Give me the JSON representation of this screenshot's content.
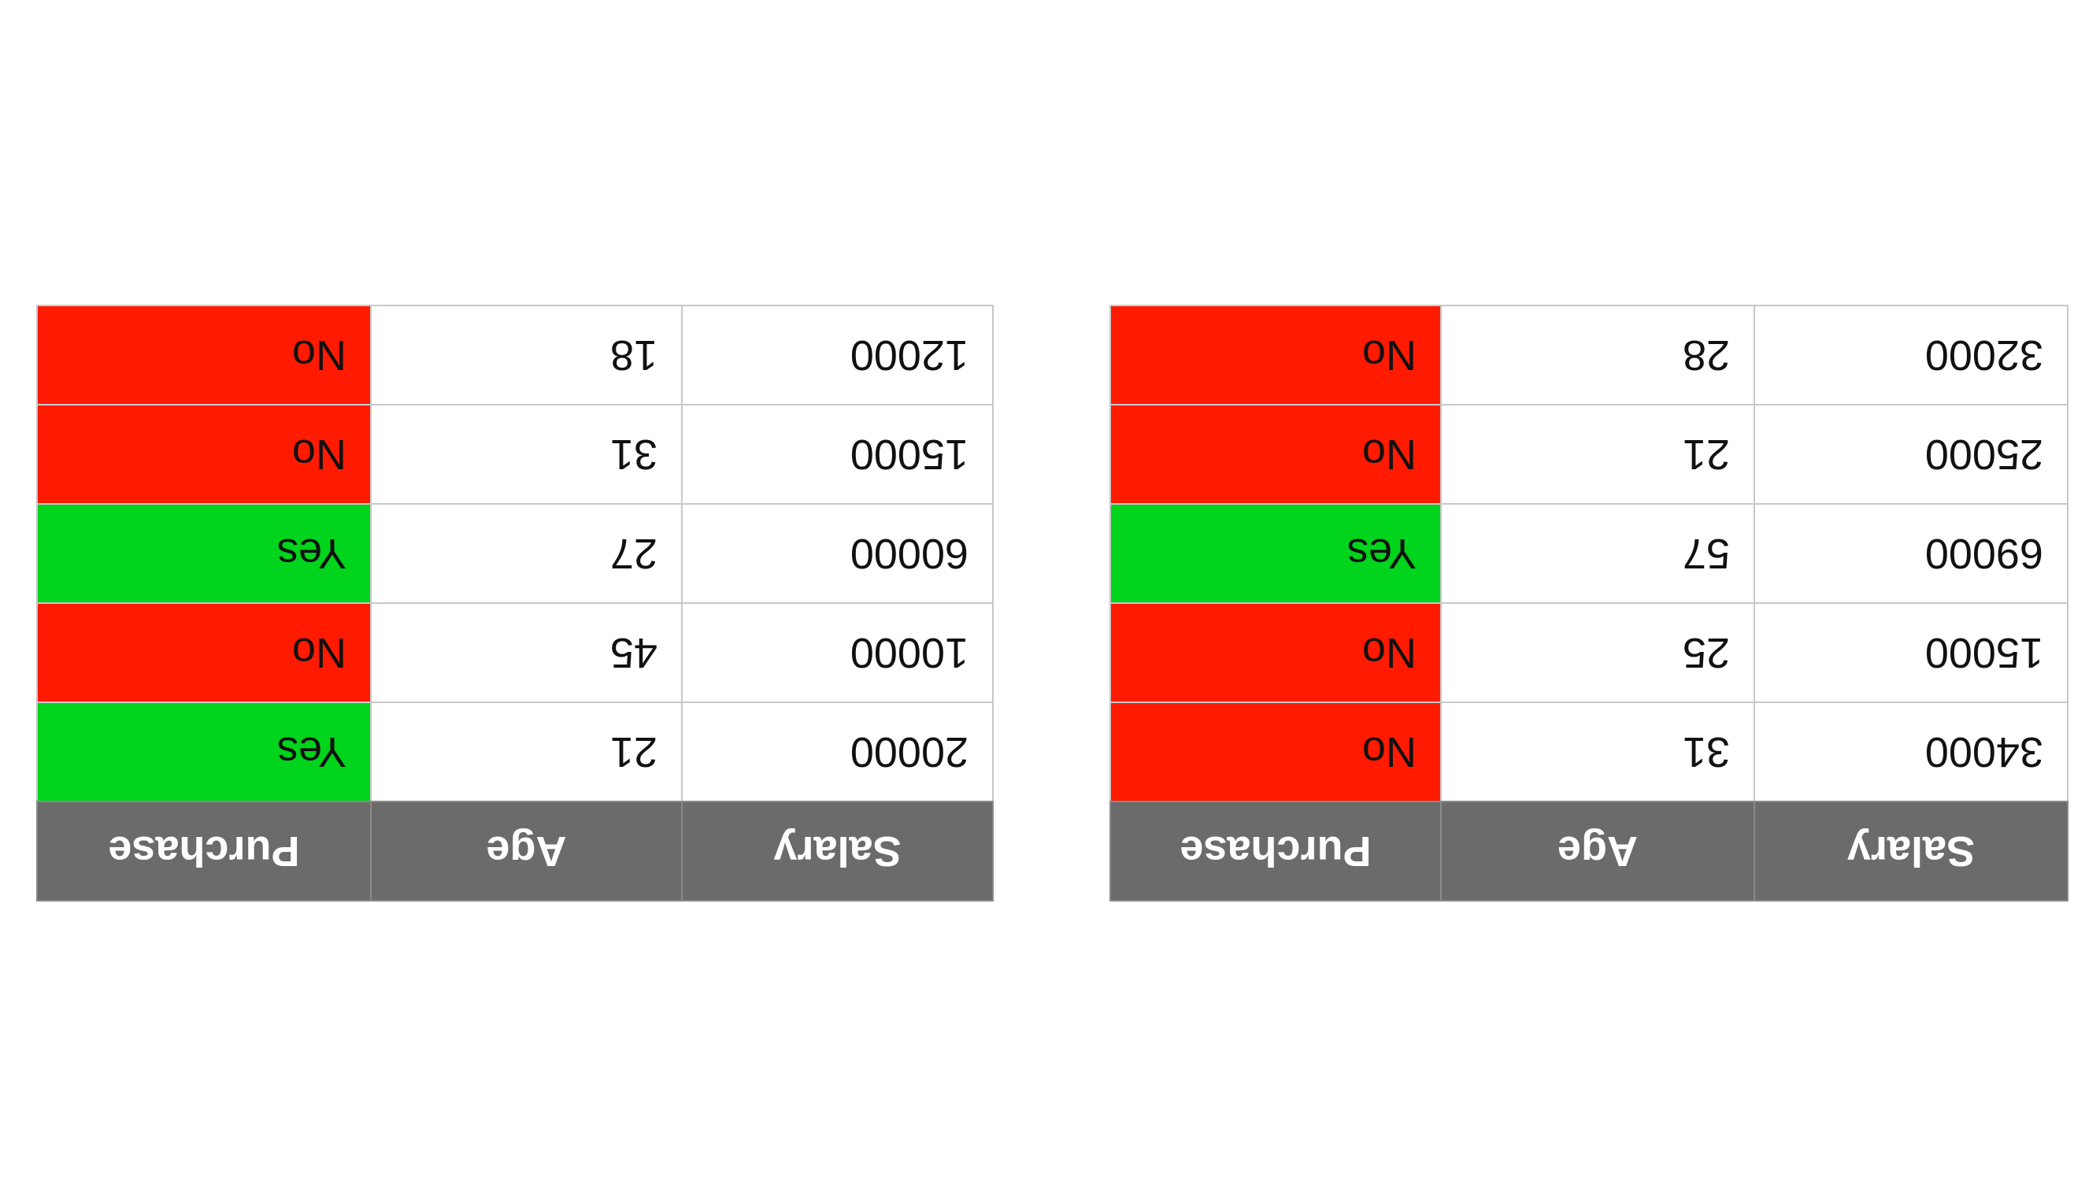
{
  "chart_data": [
    {
      "type": "table",
      "columns": [
        "Salary",
        "Age",
        "Purchase"
      ],
      "rows": [
        [
          "20000",
          "21",
          "Yes"
        ],
        [
          "10000",
          "45",
          "No"
        ],
        [
          "60000",
          "27",
          "Yes"
        ],
        [
          "15000",
          "31",
          "No"
        ],
        [
          "12000",
          "18",
          "No"
        ]
      ]
    },
    {
      "type": "table",
      "columns": [
        "Salary",
        "Age",
        "Purchase"
      ],
      "rows": [
        [
          "34000",
          "31",
          "No"
        ],
        [
          "15000",
          "25",
          "No"
        ],
        [
          "69000",
          "57",
          "Yes"
        ],
        [
          "25000",
          "21",
          "No"
        ],
        [
          "32000",
          "28",
          "No"
        ]
      ]
    }
  ],
  "colors": {
    "header_bg": "#6b6b6b",
    "yes": "#00d41c",
    "no": "#ff1a00",
    "grid": "#c8c8c8"
  }
}
